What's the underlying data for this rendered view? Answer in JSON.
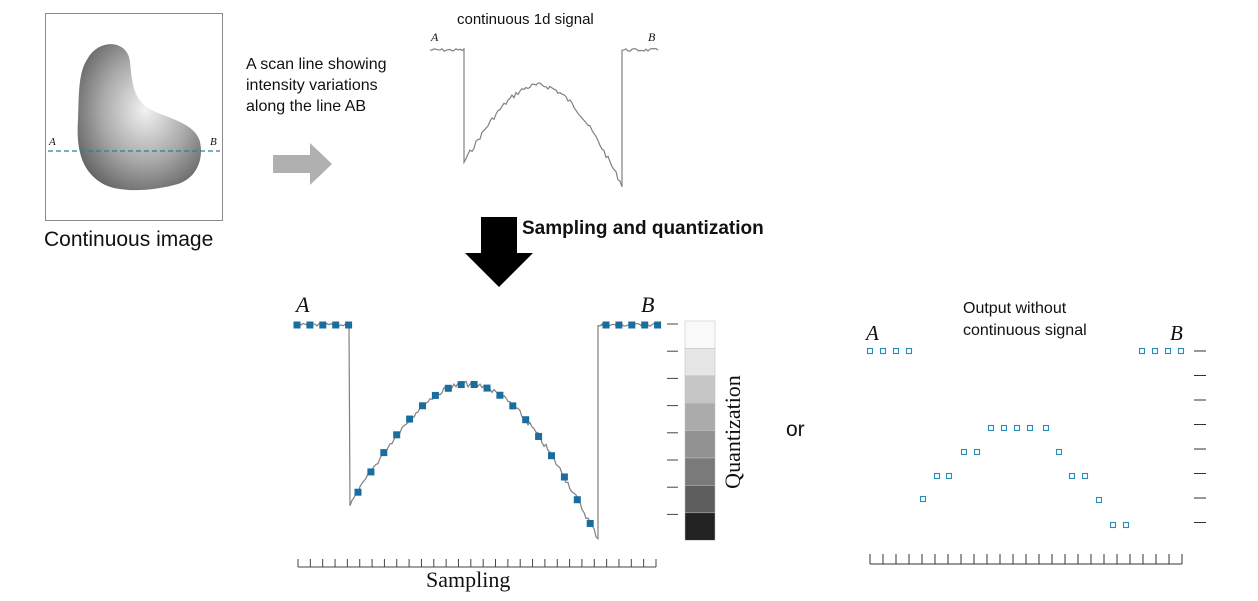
{
  "continuous_image": {
    "caption": "Continuous image",
    "point_a": "A",
    "point_b": "B"
  },
  "scan_text": {
    "line1": "A scan line showing",
    "line2": "intensity variations",
    "line3": "along the line AB"
  },
  "signal_plot": {
    "title": "continuous 1d signal",
    "point_a": "A",
    "point_b": "B"
  },
  "process_label": "Sampling and quantization",
  "sampled_plot": {
    "point_a": "A",
    "point_b": "B",
    "x_label": "Sampling",
    "y_label": "Quantization"
  },
  "or_label": "or",
  "output_plot": {
    "title_line1": "Output without",
    "title_line2": "continuous signal",
    "point_a": "A",
    "point_b": "B"
  },
  "colors": {
    "sample_fill": "#1a6e9e",
    "sample_outline": "#2a8ab8",
    "scan_line": "#2a7f9e",
    "signal": "#808080",
    "arrow_gray": "#b0b0b0",
    "arrow_black": "#000000"
  }
}
